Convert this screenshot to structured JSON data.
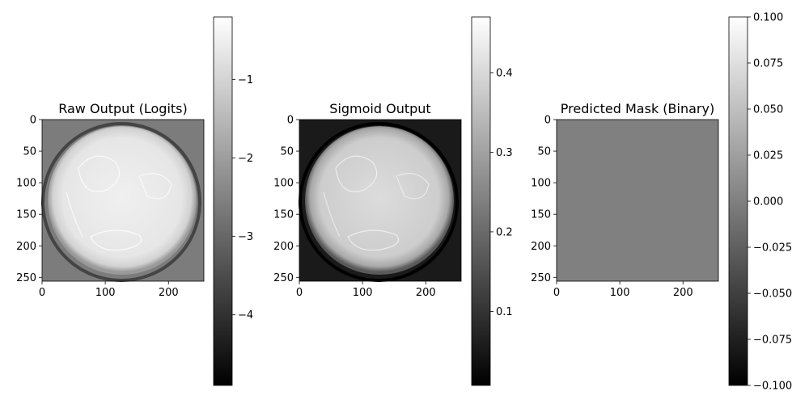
{
  "chart_data": [
    {
      "type": "heatmap",
      "title": "Raw Output (Logits)",
      "image_size": [
        256,
        256
      ],
      "colormap": "gray",
      "content": "disc",
      "xticks": [
        0,
        100,
        200
      ],
      "yticks": [
        0,
        50,
        100,
        150,
        200,
        250
      ],
      "colorbar": {
        "vmin": -4.9,
        "vmax": -0.2,
        "ticks": [
          -1,
          -2,
          -3,
          -4
        ],
        "tick_labels": [
          "−1",
          "−2",
          "−3",
          "−4"
        ]
      }
    },
    {
      "type": "heatmap",
      "title": "Sigmoid Output",
      "image_size": [
        256,
        256
      ],
      "colormap": "gray",
      "content": "disc",
      "xticks": [
        0,
        100,
        200
      ],
      "yticks": [
        0,
        50,
        100,
        150,
        200,
        250
      ],
      "colorbar": {
        "vmin": 0.007,
        "vmax": 0.47,
        "ticks": [
          0.4,
          0.3,
          0.2,
          0.1
        ],
        "tick_labels": [
          "0.4",
          "0.3",
          "0.2",
          "0.1"
        ]
      }
    },
    {
      "type": "heatmap",
      "title": "Predicted Mask (Binary)",
      "image_size": [
        256,
        256
      ],
      "colormap": "gray",
      "content": "uniform",
      "uniform_value": 0.0,
      "xticks": [
        0,
        100,
        200
      ],
      "yticks": [
        0,
        50,
        100,
        150,
        200,
        250
      ],
      "colorbar": {
        "vmin": -0.1,
        "vmax": 0.1,
        "ticks": [
          0.1,
          0.075,
          0.05,
          0.025,
          0.0,
          -0.025,
          -0.05,
          -0.075,
          -0.1
        ],
        "tick_labels": [
          "0.100",
          "0.075",
          "0.050",
          "0.025",
          "0.000",
          "−0.025",
          "−0.050",
          "−0.075",
          "−0.100"
        ]
      }
    }
  ]
}
